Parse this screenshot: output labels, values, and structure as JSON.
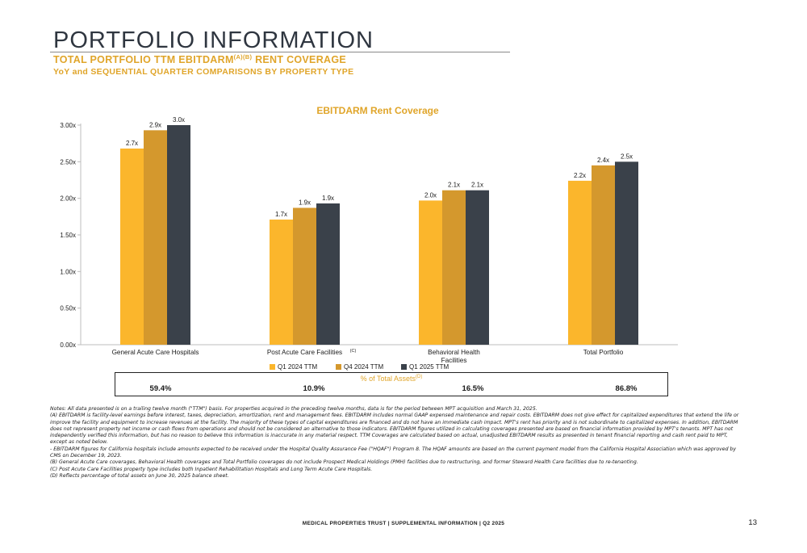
{
  "header": {
    "title": "PORTFOLIO INFORMATION",
    "subtitle_main": "TOTAL PORTFOLIO TTM EBITDARM",
    "subtitle_sup": "(A)(B)",
    "subtitle_tail": " RENT COVERAGE",
    "subtitle2": "YoY and SEQUENTIAL QUARTER COMPARISONS BY PROPERTY TYPE"
  },
  "chart_data": {
    "type": "bar",
    "title": "EBITDARM Rent Coverage",
    "categories": [
      "General Acute Care Hospitals",
      "Post Acute Care Facilities",
      "Behavioral Health Facilities",
      "Total Portfolio"
    ],
    "category_lines": [
      [
        "General Acute Care Hospitals"
      ],
      [
        "Post Acute Care Facilities"
      ],
      [
        "Behavioral Health",
        "Facilities"
      ],
      [
        "Total Portfolio"
      ]
    ],
    "category_superscripts": [
      "",
      "(C)",
      "",
      ""
    ],
    "series": [
      {
        "name": "Q1 2024 TTM",
        "color": "#fbb62c",
        "values": [
          2.68,
          1.71,
          1.97,
          2.24
        ],
        "labels": [
          "2.7x",
          "1.7x",
          "2.0x",
          "2.2x"
        ]
      },
      {
        "name": "Q4 2024 TTM",
        "color": "#d4982d",
        "values": [
          2.93,
          1.87,
          2.11,
          2.45
        ],
        "labels": [
          "2.9x",
          "1.9x",
          "2.1x",
          "2.4x"
        ]
      },
      {
        "name": "Q1 2025 TTM",
        "color": "#3a414a",
        "values": [
          3.0,
          1.93,
          2.11,
          2.5
        ],
        "labels": [
          "3.0x",
          "1.9x",
          "2.1x",
          "2.5x"
        ]
      }
    ],
    "ylim": [
      0,
      3.0
    ],
    "yticks": [
      0,
      0.5,
      1.0,
      1.5,
      2.0,
      2.5,
      3.0
    ],
    "ytick_labels": [
      "0.00x",
      "0.50x",
      "1.00x",
      "1.50x",
      "2.00x",
      "2.50x",
      "3.00x"
    ],
    "legend_position": "bottom",
    "grid": false
  },
  "assets": {
    "label": "% of Total Assets",
    "label_sup": "(D)",
    "values": [
      "59.4%",
      "10.9%",
      "16.5%",
      "86.8%"
    ]
  },
  "notes": [
    "Notes: All data presented is on a trailing twelve month (\"TTM\") basis. For properties acquired in the preceding twelve months, data is for the period between MPT acquisition and March 31, 2025.",
    "(A) EBITDARM is facility-level earnings before interest, taxes, depreciation, amortization, rent and management fees. EBITDARM includes normal GAAP expensed maintenance and repair costs. EBITDARM does not give effect for capitalized expenditures that extend the life or improve the facility and equipment to increase revenues at the facility. The majority of these types of capital expenditures are financed and do not have an immediate cash impact. MPT's rent has priority and is not subordinate to capitalized expenses. In addition, EBITDARM does not represent property net income or cash flows from operations and should not be considered an alternative to those indicators. EBITDARM figures utilized in calculating coverages presented are based on financial information provided by MPT's tenants. MPT has not independently verified this information, but has no reason to believe this information is inaccurate in any material respect. TTM Coverages are calculated based on actual, unadjusted EBITDARM results as presented in tenant financial reporting and cash rent paid to MPT, except as noted below.",
    "- EBITDARM figures for California hospitals include amounts expected to be received under the Hospital Quality Assurance Fee (\"HQAF\") Program 8. The HQAF amounts are based on the current payment model from the California Hospital Association which was approved by CMS on December 19, 2023.",
    "(B) General Acute Care coverages, Behavioral Health coverages and Total Portfolio coverages do not include Prospect Medical Holdings (PMH) facilities due to restructuring, and former Steward Health Care facilities due to re-tenanting.",
    "(C) Post Acute Care Facilities property type includes both Inpatient Rehabilitation Hospitals and Long Term Acute Care Hospitals.",
    "(D) Reflects percentage of total assets on June 30, 2025 balance sheet."
  ],
  "footer": {
    "text": "MEDICAL PROPERTIES TRUST | SUPPLEMENTAL INFORMATION | Q2 2025",
    "page_number": "13"
  }
}
